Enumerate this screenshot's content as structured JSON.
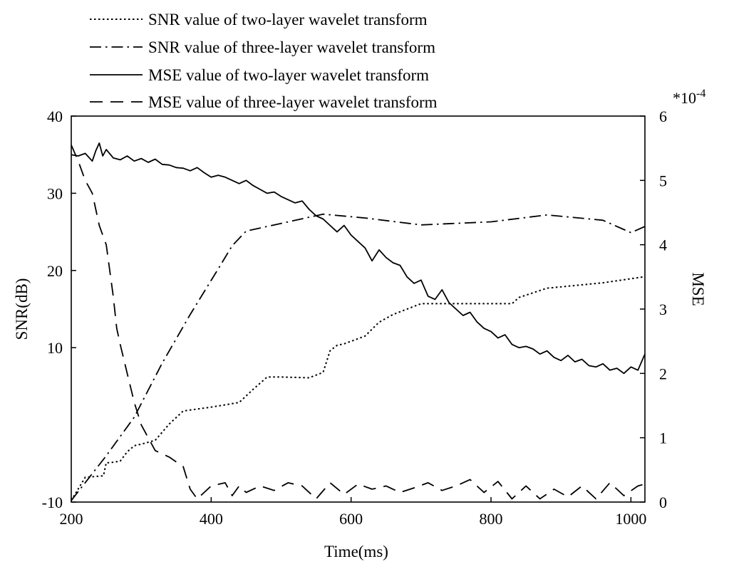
{
  "chart_data": {
    "type": "line",
    "xlabel": "Time(ms)",
    "ylabel": "SNR(dB)",
    "y2label": "MSE",
    "y2_multiplier": "*10",
    "y2_exponent": "-4",
    "xlim": [
      200,
      1020
    ],
    "ylim": [
      -10,
      40
    ],
    "y2lim": [
      0,
      6
    ],
    "x_ticks": [
      "200",
      "400",
      "600",
      "800",
      "1000"
    ],
    "y_ticks": [
      "-10",
      "10",
      "20",
      "30",
      "40"
    ],
    "y_tick_values": [
      -10,
      10,
      20,
      30,
      40
    ],
    "y2_ticks": [
      "0",
      "1",
      "2",
      "3",
      "4",
      "5",
      "6"
    ],
    "grid": false,
    "legend_position": "top",
    "series": [
      {
        "name": "SNR value of two-layer wavelet transform",
        "axis": "left",
        "style": "dotted",
        "x": [
          200,
          220,
          246,
          250,
          256,
          270,
          280,
          290,
          300,
          320,
          340,
          360,
          400,
          440,
          460,
          480,
          500,
          540,
          560,
          570,
          580,
          590,
          620,
          640,
          660,
          680,
          700,
          720,
          760,
          800,
          830,
          840,
          880,
          960,
          1020
        ],
        "y": [
          -9.8,
          -6.8,
          -6.6,
          -4.9,
          -4.9,
          -4.7,
          -3.5,
          -2.7,
          -2.5,
          -2.0,
          0.1,
          1.8,
          2.3,
          2.9,
          4.6,
          6.2,
          6.2,
          6.1,
          6.8,
          9.6,
          10.3,
          10.5,
          11.5,
          13.3,
          14.3,
          15.0,
          15.7,
          15.7,
          15.7,
          15.7,
          15.7,
          16.5,
          17.7,
          18.4,
          19.2
        ]
      },
      {
        "name": "SNR value of three-layer wavelet transform",
        "axis": "left",
        "style": "dashdot",
        "x": [
          200,
          250,
          290,
          330,
          370,
          410,
          430,
          450,
          500,
          560,
          620,
          700,
          800,
          880,
          960,
          1000,
          1020
        ],
        "y": [
          -9.8,
          -4.0,
          1.0,
          8.0,
          14.3,
          20.2,
          23.2,
          25.1,
          26.1,
          27.3,
          26.8,
          25.9,
          26.3,
          27.2,
          26.5,
          24.9,
          25.7
        ]
      },
      {
        "name": "MSE value of two-layer wavelet transform",
        "axis": "right",
        "style": "solid",
        "x": [
          200,
          210,
          220,
          230,
          235,
          240,
          245,
          250,
          260,
          270,
          280,
          290,
          300,
          310,
          320,
          330,
          340,
          350,
          360,
          370,
          380,
          390,
          400,
          410,
          420,
          430,
          440,
          450,
          460,
          470,
          480,
          490,
          500,
          510,
          520,
          530,
          540,
          550,
          560,
          570,
          580,
          590,
          600,
          610,
          620,
          630,
          640,
          650,
          660,
          670,
          680,
          690,
          700,
          710,
          720,
          730,
          740,
          750,
          760,
          770,
          780,
          790,
          800,
          810,
          820,
          830,
          840,
          850,
          860,
          870,
          880,
          890,
          900,
          910,
          920,
          930,
          940,
          950,
          960,
          970,
          980,
          990,
          1000,
          1010,
          1020
        ],
        "y": [
          5.4,
          5.38,
          5.42,
          5.3,
          5.46,
          5.58,
          5.38,
          5.48,
          5.35,
          5.32,
          5.38,
          5.3,
          5.34,
          5.28,
          5.33,
          5.25,
          5.24,
          5.2,
          5.19,
          5.15,
          5.2,
          5.12,
          5.05,
          5.08,
          5.05,
          5.0,
          4.95,
          5.0,
          4.92,
          4.86,
          4.8,
          4.82,
          4.75,
          4.7,
          4.65,
          4.68,
          4.55,
          4.45,
          4.4,
          4.3,
          4.2,
          4.3,
          4.15,
          4.05,
          3.95,
          3.75,
          3.92,
          3.8,
          3.72,
          3.68,
          3.5,
          3.4,
          3.45,
          3.2,
          3.15,
          3.3,
          3.1,
          3.0,
          2.9,
          2.95,
          2.8,
          2.7,
          2.65,
          2.55,
          2.6,
          2.45,
          2.4,
          2.42,
          2.38,
          2.3,
          2.35,
          2.25,
          2.2,
          2.28,
          2.18,
          2.22,
          2.12,
          2.1,
          2.15,
          2.05,
          2.08,
          2.0,
          2.1,
          2.05,
          2.3
        ]
      },
      {
        "name": "MSE value of three-layer wavelet transform",
        "axis": "right",
        "style": "dashed",
        "x": [
          200,
          210,
          220,
          230,
          235,
          240,
          250,
          260,
          265,
          270,
          280,
          290,
          300,
          310,
          320,
          340,
          360,
          370,
          380,
          390,
          400,
          420,
          430,
          440,
          450,
          470,
          490,
          510,
          530,
          550,
          570,
          590,
          610,
          630,
          650,
          670,
          690,
          710,
          730,
          750,
          770,
          790,
          810,
          830,
          850,
          870,
          890,
          910,
          930,
          950,
          970,
          990,
          1010,
          1020
        ],
        "y": [
          5.55,
          5.3,
          5.0,
          4.8,
          4.55,
          4.3,
          4.0,
          3.2,
          2.7,
          2.45,
          2.0,
          1.55,
          1.2,
          1.0,
          0.8,
          0.7,
          0.55,
          0.2,
          0.05,
          0.15,
          0.25,
          0.3,
          0.1,
          0.25,
          0.15,
          0.25,
          0.18,
          0.3,
          0.25,
          0.05,
          0.3,
          0.12,
          0.28,
          0.2,
          0.25,
          0.15,
          0.22,
          0.3,
          0.18,
          0.25,
          0.35,
          0.15,
          0.32,
          0.05,
          0.25,
          0.05,
          0.2,
          0.08,
          0.25,
          0.05,
          0.3,
          0.1,
          0.25,
          0.28
        ]
      }
    ]
  }
}
